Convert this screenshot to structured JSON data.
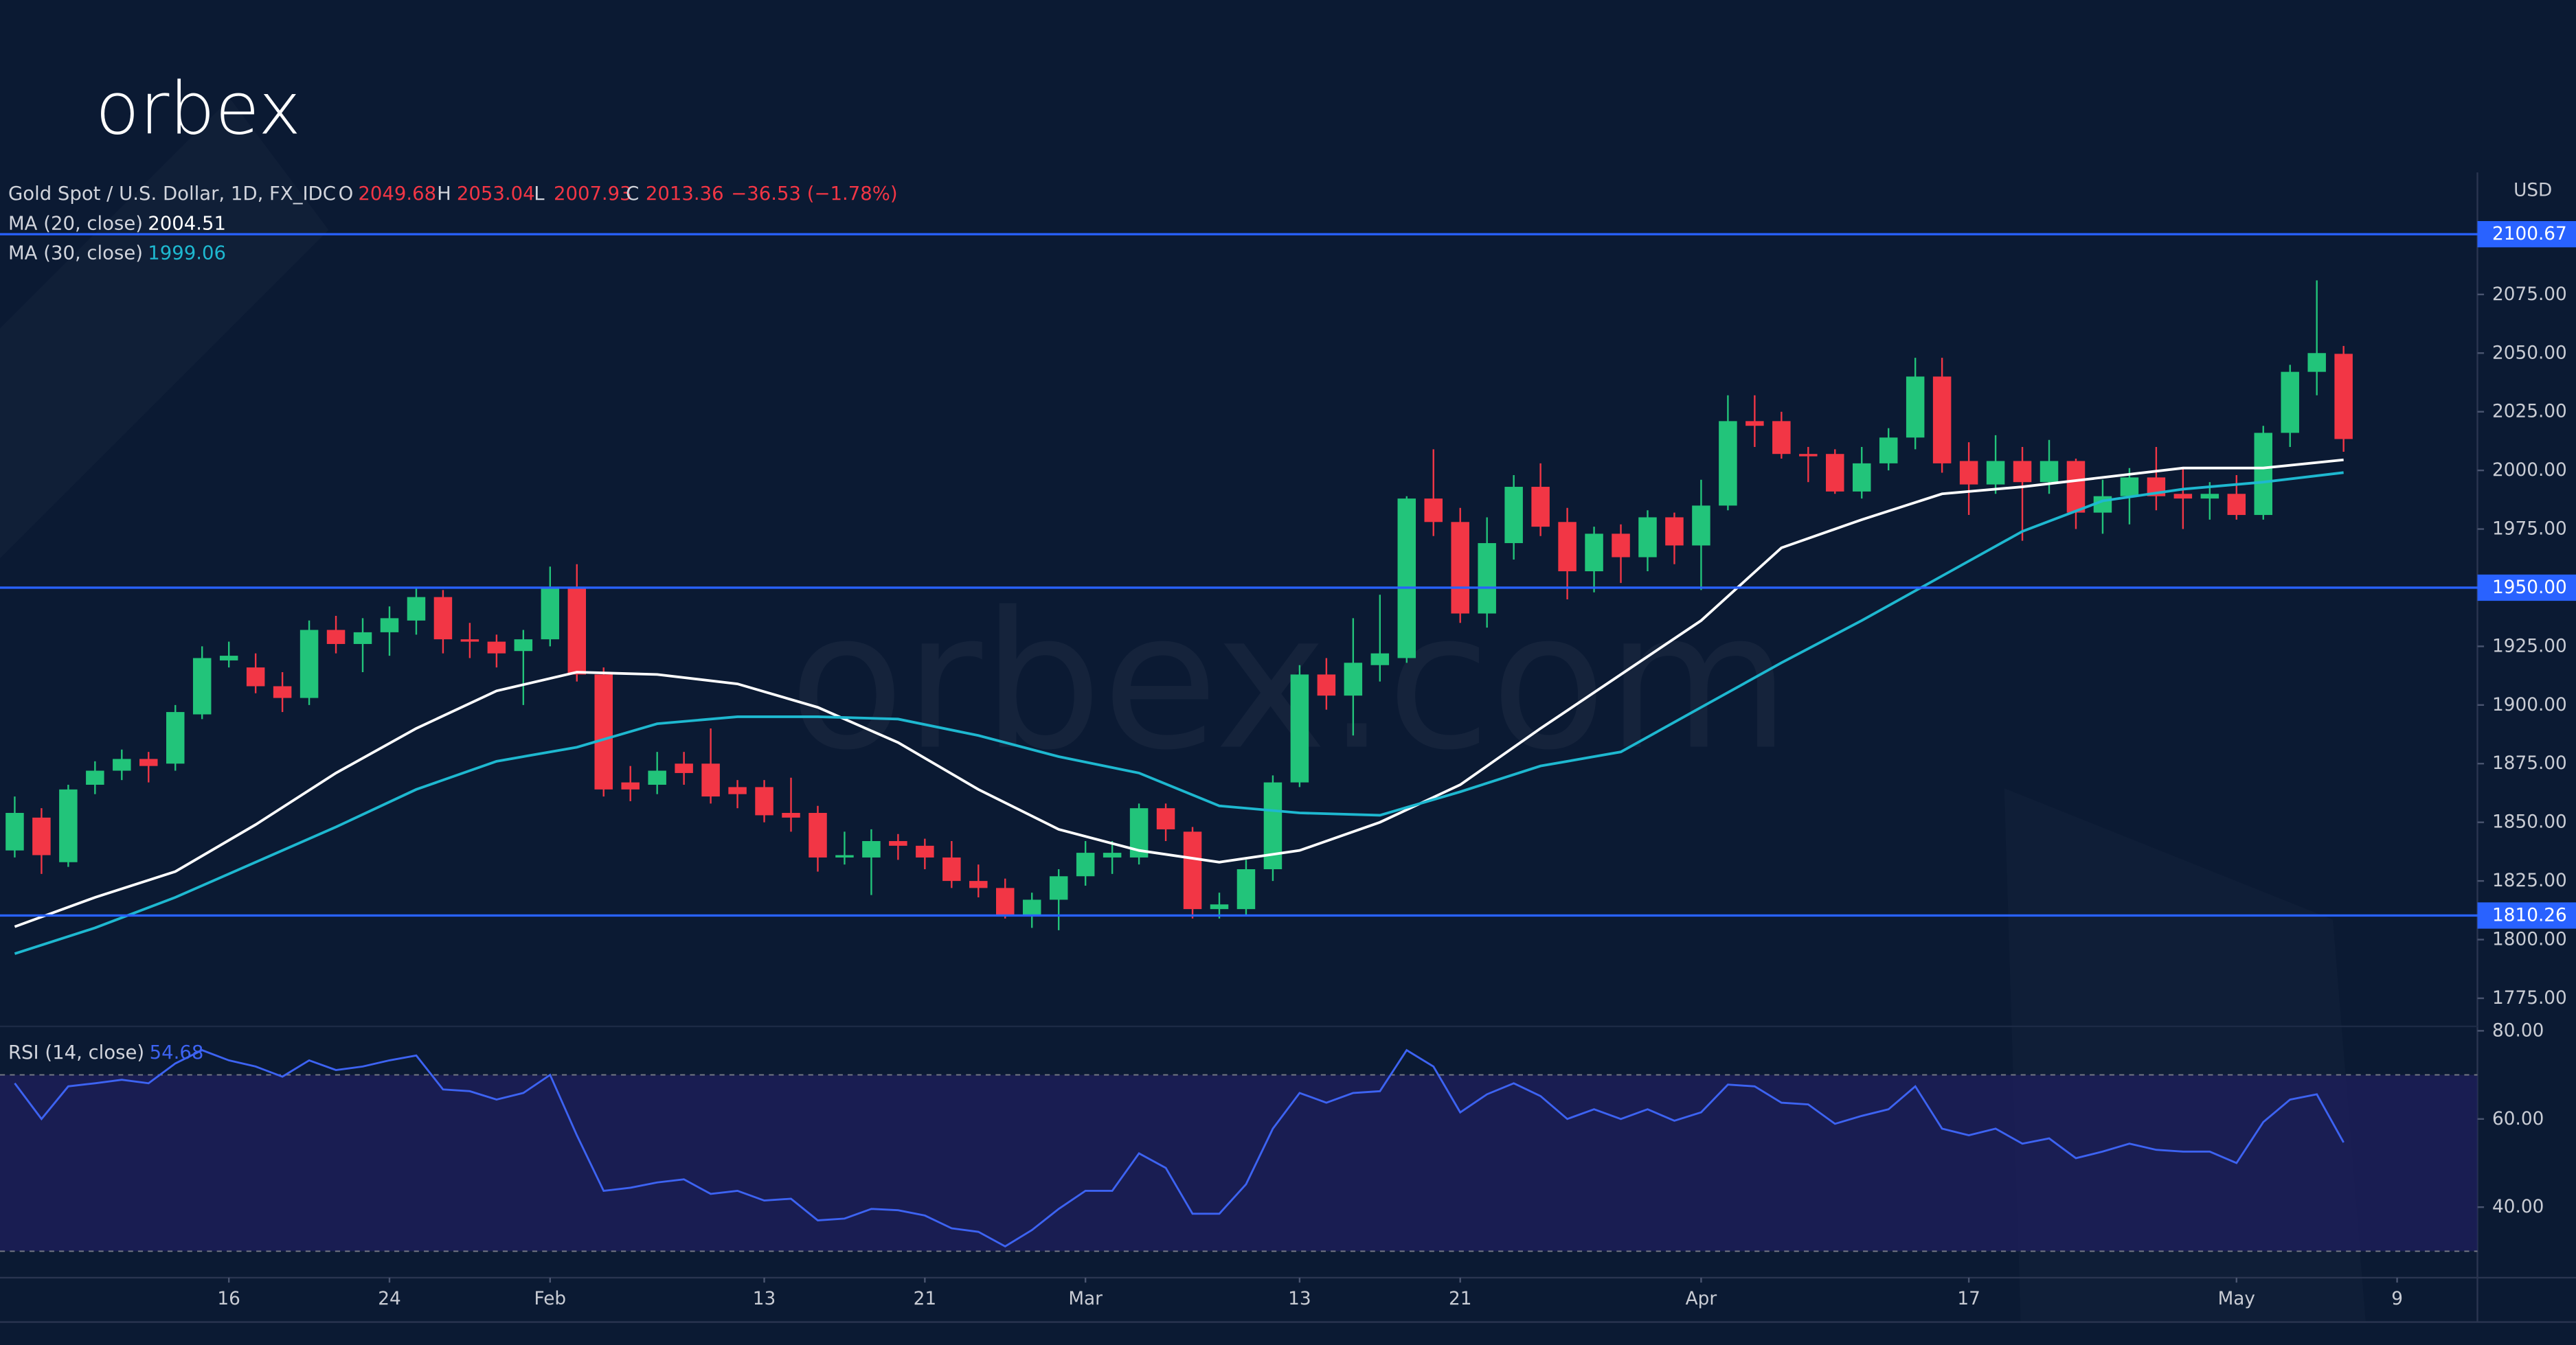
{
  "logo": "orbex",
  "watermark": "orbex.com",
  "chart_data": [
    {
      "type": "candlestick",
      "title": "Gold Spot / U.S. Dollar, 1D, FX_IDC",
      "ohlc_letters": [
        "O",
        "H",
        "L",
        "C"
      ],
      "change_label": "−36.53 (−1.78%)",
      "y_unit": "USD",
      "up_color": "#22c47a",
      "down_color": "#f23645",
      "open": [
        1838,
        1852,
        1833,
        1866,
        1872,
        1877,
        1875,
        1896,
        1919,
        1916,
        1908,
        1903,
        1932,
        1926,
        1931,
        1936,
        1946,
        1928,
        1927,
        1923,
        1928,
        1950,
        1913,
        1867,
        1866,
        1875,
        1875,
        1865,
        1865,
        1854,
        1854,
        1835,
        1835,
        1842,
        1840,
        1835,
        1825,
        1822,
        1810,
        1817,
        1827,
        1835,
        1835,
        1856,
        1846,
        1813,
        1813,
        1830,
        1867,
        1913,
        1904,
        1917,
        1920,
        1988,
        1978,
        1939,
        1969,
        1993,
        1978,
        1957,
        1973,
        1963,
        1980,
        1968,
        1985,
        2021,
        2021,
        2007,
        2007,
        1991,
        2003,
        2014,
        2040,
        2004,
        1994,
        2004,
        1995,
        2004,
        1982,
        1989,
        1997,
        1990,
        1988,
        1990,
        1981,
        2016,
        2042,
        2049.68
      ],
      "high": [
        1861,
        1856,
        1866,
        1876,
        1881,
        1880,
        1900,
        1925,
        1927,
        1922,
        1914,
        1936,
        1938,
        1937,
        1942,
        1950,
        1949,
        1935,
        1930,
        1932,
        1959,
        1960,
        1916,
        1874,
        1880,
        1880,
        1890,
        1868,
        1868,
        1869,
        1857,
        1846,
        1847,
        1845,
        1843,
        1842,
        1832,
        1826,
        1820,
        1830,
        1842,
        1842,
        1858,
        1858,
        1848,
        1820,
        1834,
        1870,
        1917,
        1920,
        1937,
        1947,
        1989,
        2009,
        1984,
        1980,
        1998,
        2003,
        1984,
        1976,
        1977,
        1983,
        1982,
        1996,
        2032,
        2032,
        2025,
        2010,
        2009,
        2010,
        2018,
        2048,
        2048,
        2012,
        2015,
        2010,
        2013,
        2005,
        1996,
        2001,
        2010,
        2001,
        1995,
        1998,
        2019,
        2045,
        2081,
        2053.04
      ],
      "low": [
        1835,
        1828,
        1831,
        1862,
        1868,
        1867,
        1872,
        1894,
        1916,
        1905,
        1897,
        1900,
        1922,
        1914,
        1921,
        1930,
        1922,
        1920,
        1916,
        1900,
        1925,
        1910,
        1861,
        1859,
        1862,
        1866,
        1858,
        1856,
        1850,
        1846,
        1829,
        1832,
        1819,
        1834,
        1830,
        1822,
        1818,
        1809,
        1805,
        1804,
        1823,
        1828,
        1832,
        1842,
        1809,
        1809,
        1810,
        1825,
        1865,
        1898,
        1887,
        1910,
        1918,
        1972,
        1935,
        1933,
        1962,
        1972,
        1945,
        1948,
        1952,
        1957,
        1960,
        1949,
        1983,
        2010,
        2005,
        1995,
        1990,
        1988,
        2000,
        2009,
        1999,
        1981,
        1990,
        1970,
        1990,
        1975,
        1973,
        1977,
        1983,
        1975,
        1979,
        1979,
        1979,
        2010,
        2032,
        2007.93
      ],
      "close": [
        1854,
        1836,
        1864,
        1872,
        1877,
        1874,
        1897,
        1920,
        1921,
        1908,
        1903,
        1932,
        1926,
        1931,
        1937,
        1946,
        1928,
        1927,
        1922,
        1928,
        1950,
        1913,
        1864,
        1864,
        1872,
        1871,
        1861,
        1862,
        1853,
        1852,
        1835,
        1836,
        1842,
        1840,
        1835,
        1825,
        1822,
        1810,
        1817,
        1827,
        1837,
        1837,
        1856,
        1847,
        1813,
        1815,
        1830,
        1867,
        1913,
        1904,
        1918,
        1922,
        1988,
        1978,
        1939,
        1969,
        1993,
        1976,
        1957,
        1973,
        1963,
        1980,
        1968,
        1985,
        2021,
        2019,
        2007,
        2006,
        1991,
        2003,
        2014,
        2040,
        2003,
        1994,
        2004,
        1995,
        2004,
        1982,
        1989,
        1997,
        1989,
        1988,
        1990,
        1981,
        2016,
        2042,
        2050,
        2013.36
      ],
      "moving_averages": [
        {
          "name": "MA (20, close)",
          "color": "#ffffff",
          "x": [
            0,
            3,
            6,
            9,
            12,
            15,
            18,
            21,
            24,
            27,
            30,
            33,
            36,
            39,
            42,
            45,
            48,
            51,
            54,
            57,
            60,
            63,
            66,
            69,
            72,
            75,
            78,
            81,
            84,
            87
          ],
          "values": [
            1805.5,
            1818,
            1829,
            1849,
            1871,
            1890,
            1906,
            1914,
            1913,
            1909,
            1899,
            1884,
            1864,
            1847,
            1838,
            1833,
            1838,
            1850,
            1866,
            1890,
            1913,
            1936,
            1967,
            1979,
            1990,
            1993,
            1997,
            2001,
            2001,
            2004.51
          ]
        },
        {
          "name": "MA (30, close)",
          "color": "#1eb8d0",
          "x": [
            0,
            3,
            6,
            9,
            12,
            15,
            18,
            21,
            24,
            27,
            30,
            33,
            36,
            39,
            42,
            45,
            48,
            51,
            54,
            57,
            60,
            63,
            66,
            69,
            72,
            75,
            78,
            81,
            84,
            87
          ],
          "values": [
            1794,
            1805,
            1818,
            1833,
            1848,
            1864,
            1876,
            1882,
            1892,
            1895,
            1895,
            1894,
            1887,
            1878,
            1871,
            1857,
            1854,
            1853,
            1863,
            1874,
            1880,
            1899,
            1918,
            1936,
            1955,
            1974,
            1987,
            1992,
            1995,
            1999.06
          ]
        }
      ],
      "level_color": "#2962ff",
      "levels": [
        2100.67,
        {
          "value": 1950,
          "label": "1950.00"
        },
        1810.26
      ],
      "xlim": [
        -0.55,
        92
      ],
      "ylim": [
        1763,
        2127
      ],
      "yticks": [
        {
          "value": 1775,
          "label": "1775.00"
        },
        {
          "value": 1800,
          "label": "1800.00"
        },
        {
          "value": 1825,
          "label": "1825.00"
        },
        {
          "value": 1850,
          "label": "1850.00"
        },
        {
          "value": 1875,
          "label": "1875.00"
        },
        {
          "value": 1900,
          "label": "1900.00"
        },
        {
          "value": 1925,
          "label": "1925.00"
        },
        {
          "value": 1975,
          "label": "1975.00"
        },
        {
          "value": 2000,
          "label": "2000.00"
        },
        {
          "value": 2025,
          "label": "2025.00"
        },
        {
          "value": 2050,
          "label": "2050.00"
        },
        {
          "value": 2075,
          "label": "2075.00"
        }
      ]
    },
    {
      "type": "line",
      "name": "RSI (14, close)",
      "color": "#3d63f2",
      "band": [
        30,
        70
      ],
      "band_color": "#1f1f5e",
      "values": [
        68.1,
        60.0,
        67.4,
        68.1,
        68.9,
        68.1,
        72.6,
        75.6,
        73.3,
        71.9,
        69.6,
        73.3,
        71.1,
        71.9,
        73.3,
        74.4,
        66.7,
        66.3,
        64.4,
        65.9,
        70.0,
        56.3,
        43.7,
        44.4,
        45.6,
        46.3,
        43.0,
        43.7,
        41.5,
        41.9,
        37.0,
        37.4,
        39.6,
        39.3,
        38.1,
        35.2,
        34.4,
        31.1,
        34.8,
        39.6,
        43.7,
        43.7,
        52.2,
        48.9,
        38.5,
        38.5,
        45.2,
        57.8,
        65.9,
        63.7,
        65.9,
        66.3,
        75.6,
        71.9,
        61.5,
        65.6,
        68.1,
        65.2,
        60.0,
        62.2,
        60.0,
        62.2,
        59.6,
        61.5,
        67.8,
        67.4,
        63.7,
        63.3,
        58.9,
        60.7,
        62.2,
        67.4,
        57.8,
        56.3,
        57.8,
        54.4,
        55.6,
        51.1,
        52.6,
        54.4,
        53.0,
        52.6,
        52.6,
        50.0,
        59.3,
        64.4,
        65.6,
        54.68
      ],
      "xlim": [
        -0.55,
        92
      ],
      "ylim": [
        24,
        81
      ],
      "yticks": [
        {
          "value": 40,
          "label": "40.00"
        },
        {
          "value": 60,
          "label": "60.00"
        },
        {
          "value": 80,
          "label": "80.00"
        }
      ],
      "xticks": [
        {
          "value": 8,
          "label": "16"
        },
        {
          "value": 14,
          "label": "24"
        },
        {
          "value": 20,
          "label": "Feb"
        },
        {
          "value": 28,
          "label": "13"
        },
        {
          "value": 34,
          "label": "21"
        },
        {
          "value": 40,
          "label": "Mar"
        },
        {
          "value": 48,
          "label": "13"
        },
        {
          "value": 54,
          "label": "21"
        },
        {
          "value": 63,
          "label": "Apr"
        },
        {
          "value": 73,
          "label": "17"
        },
        {
          "value": 83,
          "label": "May"
        },
        {
          "value": 89,
          "label": "9"
        }
      ]
    }
  ]
}
